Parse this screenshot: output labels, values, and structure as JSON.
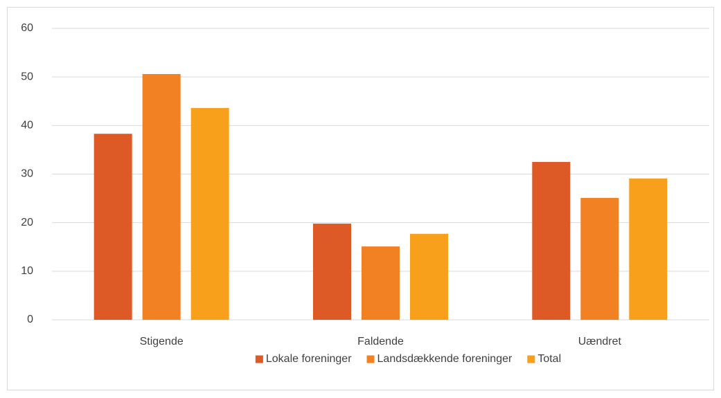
{
  "chart_data": {
    "type": "bar",
    "categories": [
      "Stigende",
      "Faldende",
      "Uændret"
    ],
    "series": [
      {
        "name": "Lokale foreninger",
        "color": "#dd5a27",
        "values": [
          38.3,
          19.8,
          32.5
        ]
      },
      {
        "name": "Landsdækkende foreninger",
        "color": "#f28124",
        "values": [
          50.6,
          15.1,
          25.1
        ]
      },
      {
        "name": "Total",
        "color": "#f8a01c",
        "values": [
          43.6,
          17.7,
          29.1
        ]
      }
    ],
    "ylim": [
      0,
      60
    ],
    "yticks": [
      0,
      10,
      20,
      30,
      40,
      50,
      60
    ],
    "grid": true,
    "legend": "bottom"
  }
}
